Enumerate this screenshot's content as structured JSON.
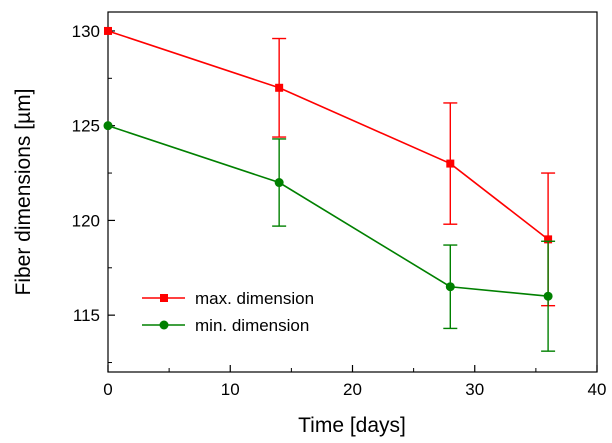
{
  "chart_data": {
    "type": "line",
    "title": "",
    "xlabel": "Time [days]",
    "ylabel": "Fiber dimensions [µm]",
    "xlim": [
      0,
      40
    ],
    "ylim": [
      112,
      131
    ],
    "xticks": [
      0,
      10,
      20,
      30,
      40
    ],
    "yticks": [
      115,
      120,
      125,
      130
    ],
    "x_tick_labels": [
      "0",
      "10",
      "20",
      "30",
      "40"
    ],
    "y_tick_labels": [
      "115",
      "120",
      "125",
      "130"
    ],
    "grid": false,
    "legend": "bottom-left",
    "series": [
      {
        "name": "max. dimension",
        "color": "#ff0000",
        "marker": "square",
        "x": [
          0,
          14,
          28,
          36
        ],
        "y": [
          130,
          127,
          123,
          119
        ],
        "err_low": [
          130,
          124.4,
          119.8,
          115.5
        ],
        "err_high": [
          130,
          129.6,
          126.2,
          122.5
        ]
      },
      {
        "name": "min. dimension",
        "color": "#008000",
        "marker": "circle",
        "x": [
          0,
          14,
          28,
          36
        ],
        "y": [
          125,
          122,
          116.5,
          116
        ],
        "err_low": [
          125,
          119.7,
          114.3,
          113.1
        ],
        "err_high": [
          125,
          124.3,
          118.7,
          118.9
        ]
      }
    ]
  }
}
